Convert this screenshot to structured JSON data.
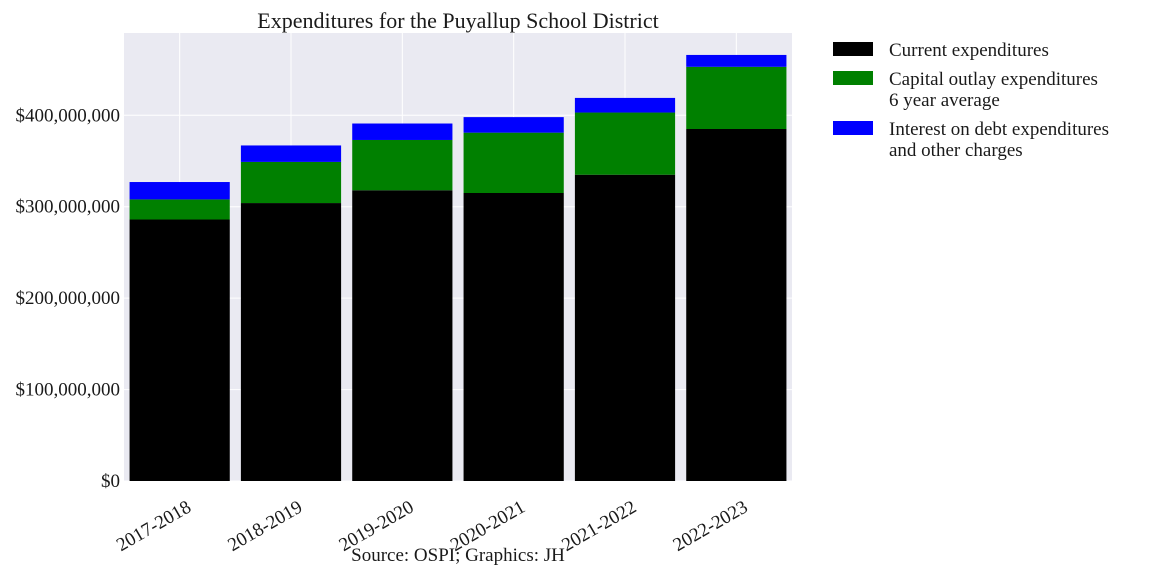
{
  "chart_data": {
    "type": "bar",
    "stacked": true,
    "title": "Expenditures for the Puyallup School District",
    "source": "Source: OSPI; Graphics: JH",
    "xlabel": "",
    "ylabel": "",
    "ylim": [
      0,
      490000000
    ],
    "yticks": [
      0,
      100000000,
      200000000,
      300000000,
      400000000
    ],
    "ytick_labels": [
      "$0",
      "$100,000,000",
      "$200,000,000",
      "$300,000,000",
      "$400,000,000"
    ],
    "categories": [
      "2017-2018",
      "2018-2019",
      "2019-2020",
      "2020-2021",
      "2021-2022",
      "2022-2023"
    ],
    "grid": true,
    "legend_position": "outside-right",
    "series": [
      {
        "name": "Current expenditures",
        "color": "#000000",
        "values": [
          286000000,
          304000000,
          318000000,
          315000000,
          335000000,
          385000000
        ]
      },
      {
        "name": "Capital outlay expenditures\n6 year average",
        "color": "#008000",
        "values": [
          22000000,
          45000000,
          55000000,
          66000000,
          68000000,
          68000000
        ]
      },
      {
        "name": "Interest on debt expenditures\nand other charges",
        "color": "#0000ff",
        "values": [
          19000000,
          18000000,
          18000000,
          17000000,
          16000000,
          13000000
        ]
      }
    ]
  }
}
